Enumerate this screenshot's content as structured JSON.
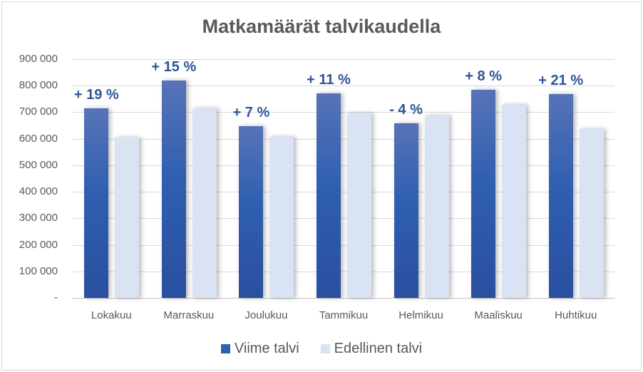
{
  "chart_data": {
    "type": "bar",
    "title": "Matkamäärät talvikaudella",
    "xlabel": "",
    "ylabel": "",
    "ylim": [
      0,
      900000
    ],
    "yticks": [
      "-",
      "100 000",
      "200 000",
      "300 000",
      "400 000",
      "500 000",
      "600 000",
      "700 000",
      "800 000",
      "900 000"
    ],
    "grid": true,
    "legend_position": "bottom",
    "categories": [
      "Lokakuu",
      "Marraskuu",
      "Joulukuu",
      "Tammikuu",
      "Helmikuu",
      "Maaliskuu",
      "Huhtikuu"
    ],
    "series": [
      {
        "name": "Viime talvi",
        "color": "#2f5fb0",
        "values": [
          715000,
          820000,
          648000,
          772000,
          659000,
          785000,
          769000
        ]
      },
      {
        "name": "Edellinen talvi",
        "color": "#dae3f3",
        "values": [
          605000,
          715000,
          607000,
          696000,
          688000,
          728000,
          637000
        ]
      }
    ],
    "annotations": [
      "+ 19 %",
      "+ 15 %",
      "+ 7 %",
      "+ 11 %",
      "- 4 %",
      "+ 8 %",
      "+ 21 %"
    ]
  },
  "legend": {
    "items": [
      {
        "label": "Viime talvi",
        "color": "#2f5fb0"
      },
      {
        "label": "Edellinen talvi",
        "color": "#dae3f3"
      }
    ]
  }
}
